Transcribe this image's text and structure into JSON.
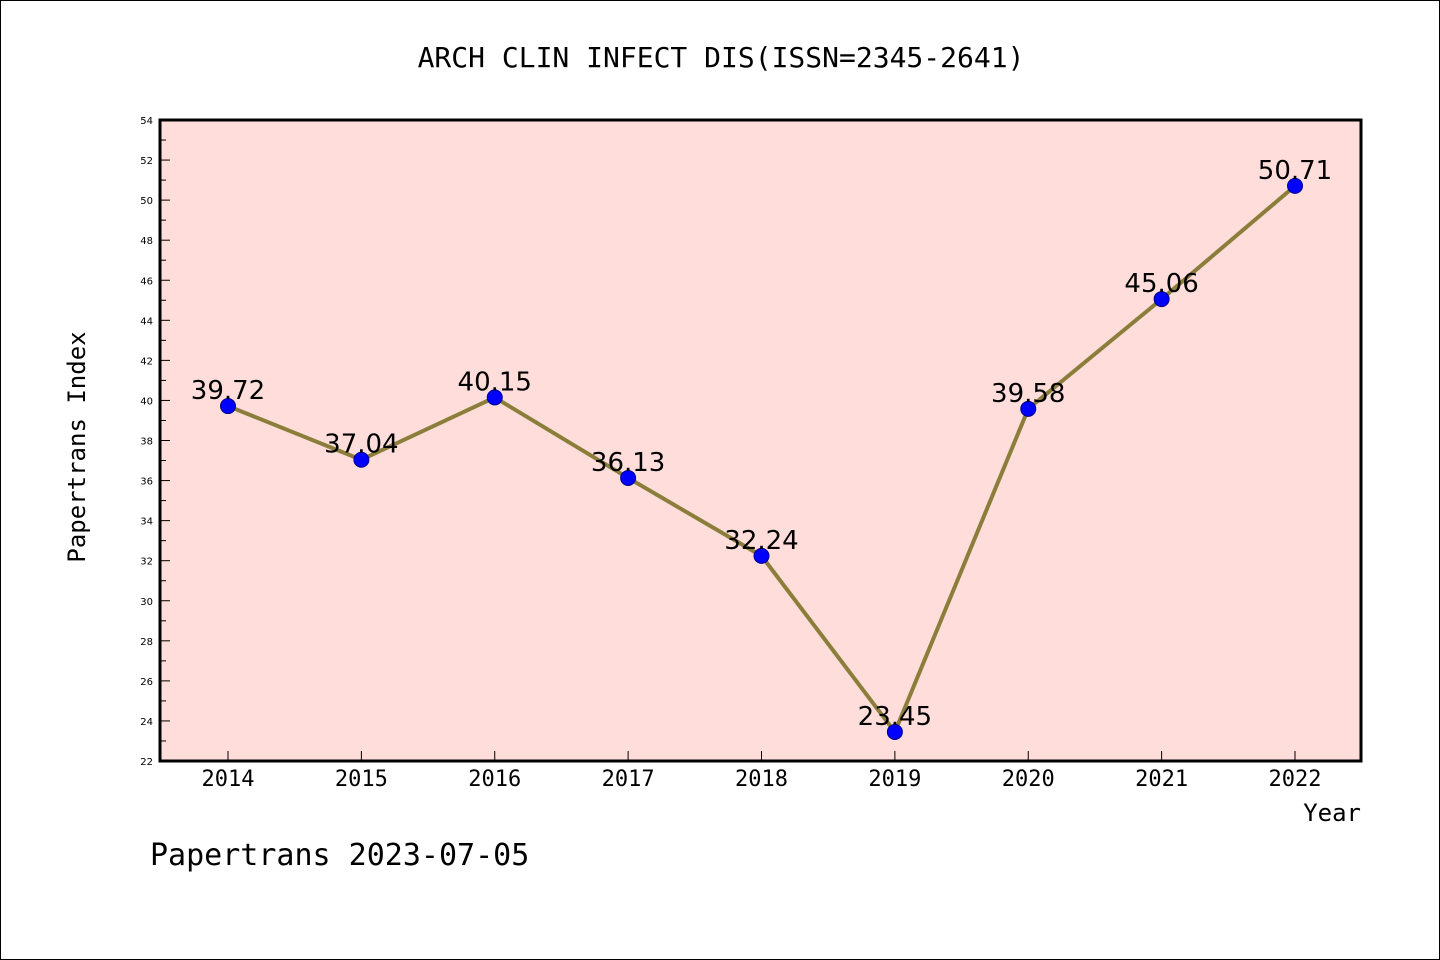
{
  "chart_data": {
    "type": "line",
    "title": "ARCH CLIN INFECT DIS(ISSN=2345-2641)",
    "xlabel": "Year",
    "ylabel": "Papertrans Index",
    "categories": [
      "2014",
      "2015",
      "2016",
      "2017",
      "2018",
      "2019",
      "2020",
      "2021",
      "2022"
    ],
    "values": [
      39.72,
      37.04,
      40.15,
      36.13,
      32.24,
      23.45,
      39.58,
      45.06,
      50.71
    ],
    "data_labels": [
      "39.72",
      "37.04",
      "40.15",
      "36.13",
      "32.24",
      "23.45",
      "39.58",
      "45.06",
      "50.71"
    ],
    "ylim": [
      22,
      54
    ],
    "yticks": [
      22,
      24,
      26,
      28,
      30,
      32,
      34,
      36,
      38,
      40,
      42,
      44,
      46,
      48,
      50,
      52,
      54
    ],
    "grid": false,
    "legend": "none",
    "colors": {
      "plot_background": "#ffdddb",
      "line": "#8b7d3a",
      "marker": "#0000ff",
      "axis": "#000000"
    }
  },
  "footer": {
    "text": "Papertrans 2023-07-05"
  }
}
